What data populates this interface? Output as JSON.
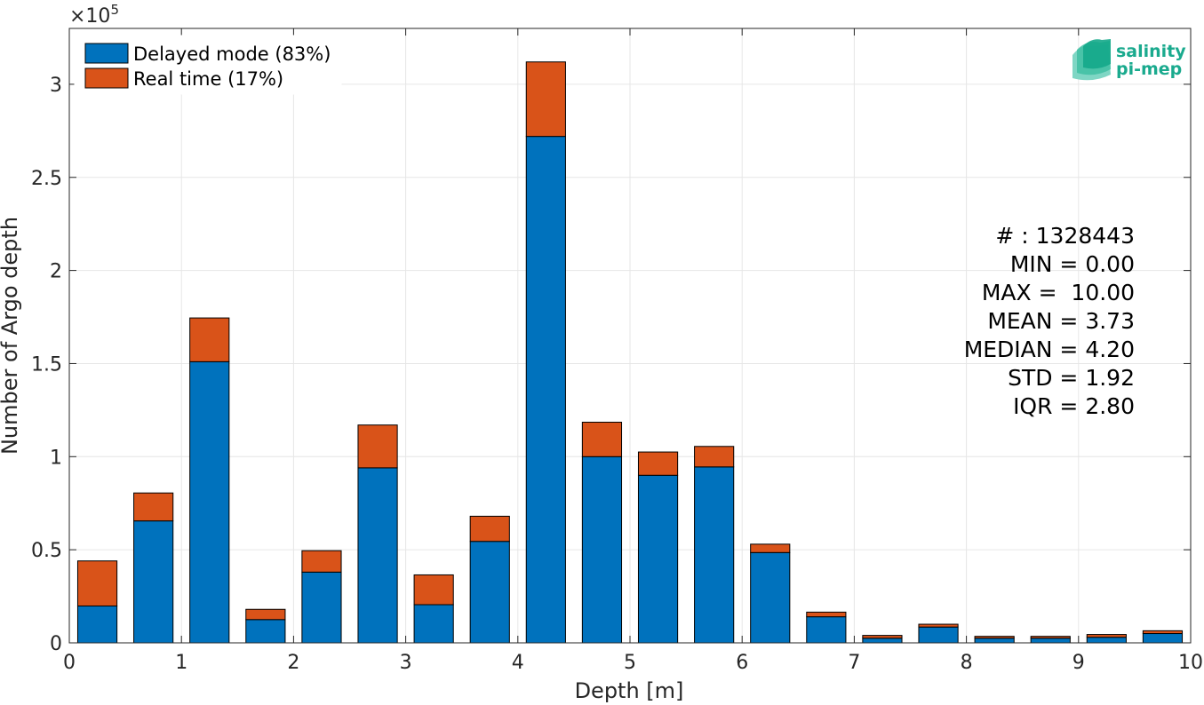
{
  "chart_data": {
    "type": "bar",
    "stacked": true,
    "xlabel": "Depth [m]",
    "ylabel": "Number of Argo depth",
    "xlim": [
      0,
      10
    ],
    "ylim": [
      0,
      330000
    ],
    "y_exponent_label": "×10",
    "y_exponent_power": "5",
    "x_ticks": [
      0,
      1,
      2,
      3,
      4,
      5,
      6,
      7,
      8,
      9,
      10
    ],
    "x_tick_labels": [
      "0",
      "1",
      "2",
      "3",
      "4",
      "5",
      "6",
      "7",
      "8",
      "9",
      "10"
    ],
    "y_ticks": [
      0,
      50000,
      100000,
      150000,
      200000,
      250000,
      300000
    ],
    "y_tick_labels": [
      "0",
      "0.5",
      "1",
      "1.5",
      "2",
      "2.5",
      "3"
    ],
    "grid": true,
    "bin_width": 0.5,
    "bar_width_fraction": 0.7,
    "x": [
      0.25,
      0.75,
      1.25,
      1.75,
      2.25,
      2.75,
      3.25,
      3.75,
      4.25,
      4.75,
      5.25,
      5.75,
      6.25,
      6.75,
      7.25,
      7.75,
      8.25,
      8.75,
      9.25,
      9.75
    ],
    "series": [
      {
        "name": "Delayed mode (83%)",
        "color": "#0072BD",
        "values": [
          19800,
          65500,
          151000,
          12500,
          38000,
          94000,
          20500,
          54500,
          272000,
          100000,
          90000,
          94500,
          48500,
          14000,
          2500,
          8500,
          2500,
          2500,
          3000,
          5000
        ]
      },
      {
        "name": "Real time (17%)",
        "color": "#D95319",
        "values": [
          24200,
          15000,
          23500,
          5500,
          11500,
          23000,
          16000,
          13500,
          40000,
          18500,
          12500,
          11000,
          4500,
          2500,
          1500,
          1500,
          1000,
          1000,
          1500,
          1500
        ]
      }
    ],
    "legend": {
      "location": "top-left"
    },
    "annotations": [
      "# : 1328443",
      "MIN = 0.00",
      "MAX =  10.00",
      "MEAN = 3.73",
      "MEDIAN = 4.20",
      "STD = 1.92",
      "IQR = 2.80"
    ]
  },
  "logo": {
    "line1": "salinity",
    "line2": "pi-mep",
    "color": "#1aaa8e"
  }
}
